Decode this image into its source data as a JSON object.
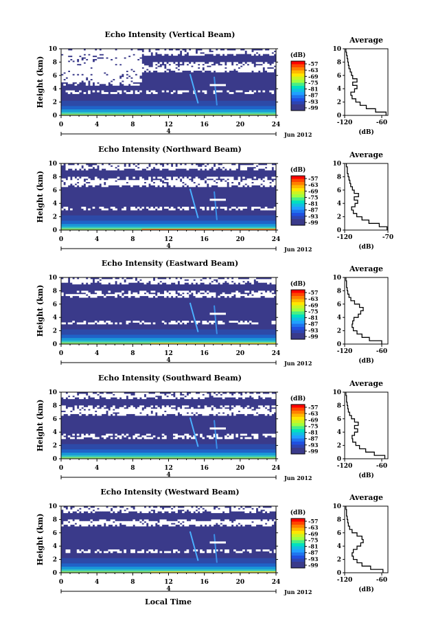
{
  "colorbar": {
    "unit": "(dB)",
    "ticks": [
      "-57",
      "-63",
      "-69",
      "-75",
      "-81",
      "-87",
      "-93",
      "-99"
    ],
    "colors": [
      "#ff0000",
      "#ff8000",
      "#ffe600",
      "#a0ff40",
      "#00e0c0",
      "#20a0ff",
      "#2050e0",
      "#3a3a8a"
    ],
    "background": "#3a3a8a"
  },
  "xlabel": "Local Time",
  "date_label": "Jun 2012",
  "sub_axis_label": "4",
  "avg_title": "Average",
  "avg_xlabel": "(dB)",
  "chart_data": [
    {
      "type": "heatmap",
      "title": "Echo Intensity (Vertical Beam)",
      "ylabel": "Height (km)",
      "x_ticks": [
        0,
        4,
        8,
        12,
        16,
        20,
        24
      ],
      "y_ticks": [
        0,
        2,
        4,
        6,
        8,
        10
      ],
      "xlim": [
        0,
        24
      ],
      "ylim": [
        0,
        10
      ],
      "white_bands": [
        [
          4.5,
          10,
          0,
          9
        ],
        [
          6.4,
          7.8,
          0,
          24
        ],
        [
          8.8,
          10,
          0,
          24
        ],
        [
          3.2,
          3.6,
          0,
          24
        ]
      ],
      "avg_profile": {
        "xlim": [
          -120,
          -50
        ],
        "x_ticks": [
          -120,
          -60
        ],
        "x_tick_labels": [
          "-120",
          "-60"
        ],
        "heights": [
          0,
          0.5,
          1,
          1.5,
          2,
          2.5,
          3,
          3.5,
          4,
          4.5,
          5,
          5.5,
          6,
          6.5,
          7,
          7.5,
          8,
          8.5,
          9,
          9.5
        ],
        "values": [
          -53,
          -70,
          -85,
          -95,
          -102,
          -108,
          -110,
          -104,
          -100,
          -107,
          -100,
          -107,
          -109,
          -111,
          -113,
          -114,
          -115,
          -116,
          -117,
          -118
        ]
      }
    },
    {
      "type": "heatmap",
      "title": "Echo Intensity (Northward Beam)",
      "ylabel": "Height (km)",
      "x_ticks": [
        0,
        4,
        8,
        12,
        16,
        20,
        24
      ],
      "y_ticks": [
        0,
        2,
        4,
        6,
        8,
        10
      ],
      "xlim": [
        0,
        24
      ],
      "ylim": [
        0,
        10
      ],
      "white_bands": [
        [
          6.4,
          7.8,
          0,
          24
        ],
        [
          8.8,
          10,
          0,
          24
        ],
        [
          3.0,
          3.4,
          0,
          24
        ]
      ],
      "avg_profile": {
        "xlim": [
          -120,
          -70
        ],
        "x_ticks": [
          -120,
          -70
        ],
        "x_tick_labels": [
          "-120",
          "-70"
        ],
        "heights": [
          0,
          0.5,
          1,
          1.5,
          2,
          2.5,
          3,
          3.5,
          4,
          4.5,
          5,
          5.5,
          6,
          6.5,
          7,
          7.5,
          8,
          8.5,
          9,
          9.5
        ],
        "values": [
          -71,
          -80,
          -92,
          -100,
          -106,
          -110,
          -112,
          -108,
          -105,
          -109,
          -104,
          -109,
          -111,
          -113,
          -114,
          -115,
          -116,
          -117,
          -117,
          -118
        ]
      }
    },
    {
      "type": "heatmap",
      "title": "Echo Intensity (Eastward Beam)",
      "ylabel": "Height (km)",
      "x_ticks": [
        0,
        4,
        8,
        12,
        16,
        20,
        24
      ],
      "y_ticks": [
        0,
        2,
        4,
        6,
        8,
        10
      ],
      "xlim": [
        0,
        24
      ],
      "ylim": [
        0,
        10
      ],
      "white_bands": [
        [
          6.8,
          7.8,
          0,
          24
        ],
        [
          8.8,
          10,
          0,
          24
        ],
        [
          2.8,
          3.4,
          0,
          24
        ]
      ],
      "avg_profile": {
        "xlim": [
          -120,
          -50
        ],
        "x_ticks": [
          -120,
          -60
        ],
        "x_tick_labels": [
          "-120",
          "-60"
        ],
        "heights": [
          0,
          0.5,
          1,
          1.5,
          2,
          2.5,
          3,
          3.5,
          4,
          4.5,
          5,
          5.5,
          6,
          6.5,
          7,
          7.5,
          8,
          8.5,
          9,
          9.5
        ],
        "values": [
          -60,
          -80,
          -92,
          -100,
          -106,
          -108,
          -107,
          -105,
          -98,
          -94,
          -90,
          -96,
          -104,
          -110,
          -113,
          -115,
          -116,
          -117,
          -117,
          -118
        ]
      }
    },
    {
      "type": "heatmap",
      "title": "Echo Intensity (Southward Beam)",
      "ylabel": "Height (km)",
      "x_ticks": [
        0,
        4,
        8,
        12,
        16,
        20,
        24
      ],
      "y_ticks": [
        0,
        2,
        4,
        6,
        8,
        10
      ],
      "xlim": [
        0,
        24
      ],
      "ylim": [
        0,
        10
      ],
      "white_bands": [
        [
          6.4,
          7.8,
          0,
          24
        ],
        [
          8.8,
          10,
          0,
          24
        ],
        [
          3.0,
          3.6,
          0,
          24
        ]
      ],
      "avg_profile": {
        "xlim": [
          -120,
          -50
        ],
        "x_ticks": [
          -120,
          -60
        ],
        "x_tick_labels": [
          "-120",
          "-60"
        ],
        "heights": [
          0,
          0.5,
          1,
          1.5,
          2,
          2.5,
          3,
          3.5,
          4,
          4.5,
          5,
          5.5,
          6,
          6.5,
          7,
          7.5,
          8,
          8.5,
          9,
          9.5
        ],
        "values": [
          -55,
          -72,
          -86,
          -96,
          -102,
          -107,
          -108,
          -104,
          -99,
          -104,
          -98,
          -104,
          -109,
          -112,
          -114,
          -115,
          -116,
          -117,
          -117,
          -118
        ]
      }
    },
    {
      "type": "heatmap",
      "title": "Echo Intensity (Westward Beam)",
      "ylabel": "Height (km)",
      "x_ticks": [
        0,
        4,
        8,
        12,
        16,
        20,
        24
      ],
      "y_ticks": [
        0,
        2,
        4,
        6,
        8,
        10
      ],
      "xlim": [
        0,
        24
      ],
      "ylim": [
        0,
        10
      ],
      "white_bands": [
        [
          6.8,
          8.0,
          0,
          24
        ],
        [
          8.8,
          10,
          0,
          24
        ],
        [
          2.8,
          3.4,
          0,
          24
        ]
      ],
      "avg_profile": {
        "xlim": [
          -120,
          -50
        ],
        "x_ticks": [
          -120,
          -60
        ],
        "x_tick_labels": [
          "-120",
          "-60"
        ],
        "heights": [
          0,
          0.5,
          1,
          1.5,
          2,
          2.5,
          3,
          3.5,
          4,
          4.5,
          5,
          5.5,
          6,
          6.5,
          7,
          7.5,
          8,
          8.5,
          9,
          9.5
        ],
        "values": [
          -58,
          -78,
          -92,
          -100,
          -106,
          -108,
          -106,
          -100,
          -94,
          -90,
          -92,
          -100,
          -108,
          -112,
          -114,
          -115,
          -116,
          -117,
          -117,
          -118
        ]
      }
    }
  ]
}
